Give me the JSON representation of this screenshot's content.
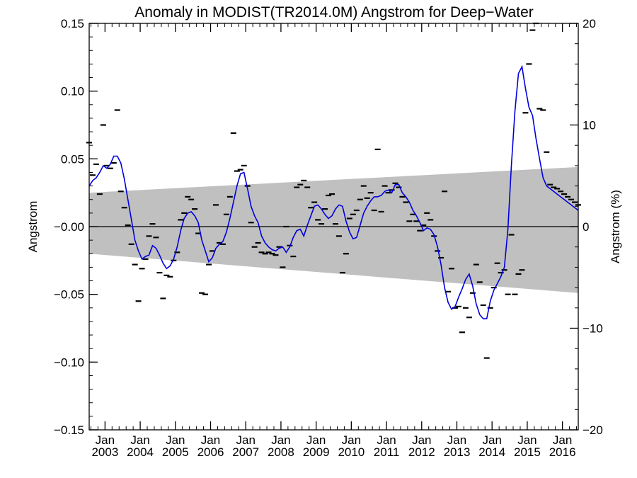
{
  "chart_data": {
    "type": "line",
    "title": "Anomaly in MODIST(TR2014.0M) Angstrom for Deep−Water",
    "ylabel": "Angstrom",
    "y2label": "Angstrom (%)",
    "xlim": [
      2002.55,
      2016.45
    ],
    "ylim": [
      -0.15,
      0.15
    ],
    "y2lim": [
      -20,
      20
    ],
    "yticks": [
      -0.15,
      -0.1,
      -0.05,
      0.0,
      0.05,
      0.1,
      0.15
    ],
    "ytick_labels": [
      "−0.15",
      "−0.10",
      "−0.05",
      "−0.00",
      "0.05",
      "0.10",
      "0.15"
    ],
    "y2ticks": [
      -20,
      -10,
      0,
      10,
      20
    ],
    "y2tick_labels": [
      "−20",
      "−10",
      "0",
      "10",
      "20"
    ],
    "xticks": [
      2003,
      2004,
      2005,
      2006,
      2007,
      2008,
      2009,
      2010,
      2011,
      2012,
      2013,
      2014,
      2015,
      2016
    ],
    "xtick_month": "Jan",
    "xtick_years": [
      "2003",
      "2004",
      "2005",
      "2006",
      "2007",
      "2008",
      "2009",
      "2010",
      "2011",
      "2012",
      "2013",
      "2014",
      "2015",
      "2016"
    ],
    "grid": false,
    "zero_line": true,
    "band": {
      "x": [
        2002.55,
        2016.45
      ],
      "upper": [
        0.025,
        0.044
      ],
      "lower": [
        -0.02,
        -0.049
      ],
      "color": "#c0c0c0"
    },
    "colors": {
      "smooth_line": "#0000dd",
      "monthly_marks": "#000000",
      "band": "#c0c0c0"
    },
    "series": [
      {
        "style": "line",
        "x": [
          2002.55,
          2002.65,
          2002.75,
          2002.85,
          2002.95,
          2003.05,
          2003.15,
          2003.25,
          2003.35,
          2003.45,
          2003.55,
          2003.65,
          2003.75,
          2003.85,
          2003.95,
          2004.05,
          2004.15,
          2004.25,
          2004.35,
          2004.45,
          2004.55,
          2004.65,
          2004.75,
          2004.85,
          2004.95,
          2005.05,
          2005.15,
          2005.25,
          2005.35,
          2005.45,
          2005.55,
          2005.65,
          2005.75,
          2005.85,
          2005.95,
          2006.05,
          2006.15,
          2006.25,
          2006.35,
          2006.45,
          2006.55,
          2006.65,
          2006.75,
          2006.85,
          2006.95,
          2007.05,
          2007.15,
          2007.25,
          2007.35,
          2007.45,
          2007.55,
          2007.65,
          2007.75,
          2007.85,
          2007.95,
          2008.05,
          2008.15,
          2008.25,
          2008.35,
          2008.45,
          2008.55,
          2008.65,
          2008.75,
          2008.85,
          2008.95,
          2009.05,
          2009.15,
          2009.25,
          2009.35,
          2009.45,
          2009.55,
          2009.65,
          2009.75,
          2009.85,
          2009.95,
          2010.05,
          2010.15,
          2010.25,
          2010.35,
          2010.45,
          2010.55,
          2010.65,
          2010.75,
          2010.85,
          2010.95,
          2011.05,
          2011.15,
          2011.25,
          2011.35,
          2011.45,
          2011.55,
          2011.65,
          2011.75,
          2011.85,
          2011.95,
          2012.05,
          2012.15,
          2012.25,
          2012.35,
          2012.45,
          2012.55,
          2012.65,
          2012.75,
          2012.85,
          2012.95,
          2013.05,
          2013.15,
          2013.25,
          2013.35,
          2013.45,
          2013.55,
          2013.65,
          2013.75,
          2013.85,
          2013.95,
          2014.05,
          2014.15,
          2014.25,
          2014.35,
          2014.45,
          2014.55,
          2014.65,
          2014.75,
          2014.85,
          2014.95,
          2015.05,
          2015.15,
          2015.25,
          2015.35,
          2015.45,
          2015.55,
          2015.65,
          2015.75,
          2015.85,
          2015.95,
          2016.05,
          2016.15,
          2016.25,
          2016.35,
          2016.45
        ],
        "y": [
          0.03,
          0.034,
          0.036,
          0.04,
          0.045,
          0.043,
          0.046,
          0.052,
          0.052,
          0.047,
          0.035,
          0.02,
          0.005,
          -0.01,
          -0.018,
          -0.024,
          -0.022,
          -0.021,
          -0.014,
          -0.016,
          -0.021,
          -0.027,
          -0.031,
          -0.029,
          -0.024,
          -0.015,
          -0.003,
          0.006,
          0.01,
          0.011,
          0.008,
          0.003,
          -0.01,
          -0.018,
          -0.026,
          -0.023,
          -0.016,
          -0.013,
          -0.011,
          -0.004,
          0.006,
          0.018,
          0.03,
          0.039,
          0.04,
          0.028,
          0.015,
          0.008,
          0.003,
          -0.007,
          -0.012,
          -0.015,
          -0.017,
          -0.018,
          -0.016,
          -0.015,
          -0.019,
          -0.015,
          -0.008,
          -0.003,
          -0.002,
          -0.007,
          0.001,
          0.008,
          0.015,
          0.016,
          0.013,
          0.009,
          0.006,
          0.008,
          0.013,
          0.016,
          0.015,
          0.004,
          -0.004,
          -0.009,
          -0.008,
          0.001,
          0.01,
          0.015,
          0.019,
          0.022,
          0.022,
          0.023,
          0.026,
          0.027,
          0.025,
          0.031,
          0.031,
          0.025,
          0.022,
          0.018,
          0.012,
          0.008,
          0.003,
          -0.003,
          -0.001,
          -0.002,
          -0.006,
          -0.015,
          -0.028,
          -0.045,
          -0.056,
          -0.061,
          -0.059,
          -0.052,
          -0.046,
          -0.039,
          -0.035,
          -0.044,
          -0.057,
          -0.065,
          -0.068,
          -0.068,
          -0.055,
          -0.047,
          -0.042,
          -0.037,
          -0.03,
          -0.002,
          0.045,
          0.085,
          0.113,
          0.118,
          0.102,
          0.088,
          0.082,
          0.065,
          0.05,
          0.036,
          0.03,
          0.028,
          0.026,
          0.024,
          0.022,
          0.02,
          0.018,
          0.016,
          0.014,
          0.012
        ]
      },
      {
        "style": "monthly_marks",
        "x": [
          2002.55,
          2002.65,
          2002.75,
          2002.85,
          2002.95,
          2003.05,
          2003.15,
          2003.25,
          2003.35,
          2003.45,
          2003.55,
          2003.65,
          2003.75,
          2003.85,
          2003.95,
          2004.05,
          2004.15,
          2004.25,
          2004.35,
          2004.45,
          2004.55,
          2004.65,
          2004.75,
          2004.85,
          2004.95,
          2005.05,
          2005.15,
          2005.25,
          2005.35,
          2005.45,
          2005.55,
          2005.65,
          2005.75,
          2005.85,
          2005.95,
          2006.05,
          2006.15,
          2006.25,
          2006.35,
          2006.45,
          2006.55,
          2006.65,
          2006.75,
          2006.85,
          2006.95,
          2007.05,
          2007.15,
          2007.25,
          2007.35,
          2007.45,
          2007.55,
          2007.65,
          2007.75,
          2007.85,
          2007.95,
          2008.05,
          2008.15,
          2008.25,
          2008.35,
          2008.45,
          2008.55,
          2008.65,
          2008.75,
          2008.85,
          2008.95,
          2009.05,
          2009.15,
          2009.25,
          2009.35,
          2009.45,
          2009.55,
          2009.65,
          2009.75,
          2009.85,
          2009.95,
          2010.05,
          2010.15,
          2010.25,
          2010.35,
          2010.45,
          2010.55,
          2010.65,
          2010.75,
          2010.85,
          2010.95,
          2011.05,
          2011.15,
          2011.25,
          2011.35,
          2011.45,
          2011.55,
          2011.65,
          2011.75,
          2011.85,
          2011.95,
          2012.05,
          2012.15,
          2012.25,
          2012.35,
          2012.45,
          2012.55,
          2012.65,
          2012.75,
          2012.85,
          2012.95,
          2013.05,
          2013.15,
          2013.25,
          2013.35,
          2013.45,
          2013.55,
          2013.65,
          2013.75,
          2013.85,
          2013.95,
          2014.05,
          2014.15,
          2014.25,
          2014.35,
          2014.45,
          2014.55,
          2014.65,
          2014.75,
          2014.85,
          2014.95,
          2015.05,
          2015.15,
          2015.25,
          2015.35,
          2015.45,
          2015.55,
          2015.65,
          2015.75,
          2015.85,
          2015.95,
          2016.05,
          2016.15,
          2016.25,
          2016.35,
          2016.45
        ],
        "y": [
          0.062,
          0.038,
          0.046,
          0.024,
          0.075,
          0.045,
          0.043,
          0.047,
          0.086,
          0.026,
          0.014,
          0.001,
          -0.013,
          -0.028,
          -0.055,
          -0.031,
          -0.024,
          -0.007,
          0.002,
          -0.008,
          -0.034,
          -0.053,
          -0.036,
          -0.037,
          -0.025,
          -0.019,
          0.005,
          0.01,
          0.022,
          0.02,
          0.013,
          -0.005,
          -0.049,
          -0.05,
          -0.028,
          -0.018,
          0.016,
          -0.012,
          -0.013,
          0.009,
          0.022,
          0.069,
          0.041,
          0.042,
          0.045,
          0.03,
          0.003,
          -0.015,
          -0.012,
          -0.019,
          -0.02,
          -0.019,
          -0.02,
          -0.021,
          -0.015,
          -0.03,
          0.0,
          -0.014,
          -0.022,
          0.029,
          0.031,
          0.034,
          0.029,
          0.014,
          0.018,
          0.005,
          0.002,
          0.013,
          0.023,
          0.024,
          0.002,
          -0.007,
          -0.034,
          -0.02,
          0.006,
          0.009,
          0.012,
          0.02,
          0.03,
          0.021,
          0.025,
          0.012,
          0.057,
          0.011,
          0.03,
          0.025,
          0.027,
          0.032,
          0.029,
          0.022,
          0.018,
          0.004,
          0.009,
          0.004,
          -0.003,
          0.001,
          0.01,
          0.005,
          -0.007,
          -0.018,
          -0.023,
          0.026,
          -0.048,
          -0.031,
          -0.06,
          -0.059,
          -0.078,
          -0.06,
          -0.067,
          -0.049,
          -0.028,
          -0.041,
          -0.058,
          -0.097,
          -0.06,
          -0.045,
          -0.027,
          -0.034,
          -0.032,
          -0.05,
          -0.006,
          -0.05,
          -0.035,
          -0.032,
          0.084,
          0.12,
          0.145,
          0.15,
          0.087,
          0.086,
          0.055,
          0.031,
          0.029,
          0.028,
          0.026,
          0.024,
          0.022,
          0.02,
          0.018,
          0.016
        ]
      }
    ]
  }
}
